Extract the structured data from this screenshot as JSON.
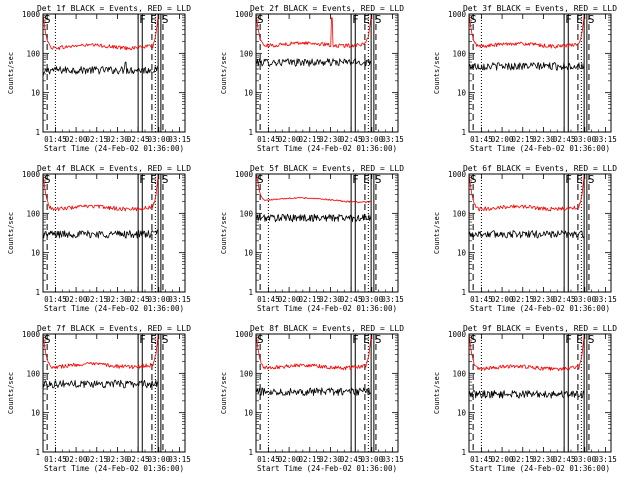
{
  "figure": {
    "xlabel": "Start Time (24-Feb-02 01:36:00)",
    "ylabel": "Counts/sec",
    "ytick_labels": [
      "1",
      "10",
      "100",
      "1000"
    ],
    "xtick_labels": [
      "01:45",
      "02:00",
      "02:15",
      "02:30",
      "02:45",
      "03:00",
      "03:15"
    ],
    "colors": {
      "events": "#000000",
      "lld": "#ff0000",
      "axes": "#000000",
      "background": "#ffffff"
    },
    "markers": {
      "start": "S",
      "flare": "F",
      "end": "E",
      "saa": "S"
    }
  },
  "chart_data": [
    {
      "type": "line",
      "title": "Det 1f BLACK = Events, RED = LLD",
      "x_unit": "minutes after 01:36:00",
      "xlim": [
        0,
        103
      ],
      "ylim": [
        1,
        1000
      ],
      "yscale": "log",
      "series": [
        {
          "name": "Events",
          "color": "#000000",
          "level": 38,
          "edge_rise": [
            25,
            45
          ],
          "spikes": [
            [
              60,
              60
            ]
          ]
        },
        {
          "name": "LLD",
          "color": "#ff0000",
          "level": 150,
          "edge_rise": [
            1000,
            1000
          ],
          "spikes": []
        }
      ],
      "events": {
        "S_start": 0,
        "F_start": 69,
        "F_end": 72,
        "E_end": 83.5,
        "S_saa": 85.5
      },
      "dashed_lines": [
        3,
        79,
        87
      ],
      "dotted_lines": [
        9,
        81.5
      ]
    },
    {
      "type": "line",
      "title": "Det 2f BLACK = Events, RED = LLD",
      "x_unit": "minutes after 01:36:00",
      "xlim": [
        0,
        103
      ],
      "ylim": [
        1,
        1000
      ],
      "yscale": "log",
      "series": [
        {
          "name": "Events",
          "color": "#000000",
          "level": 60,
          "edge_rise": [
            0,
            0
          ],
          "spikes": []
        },
        {
          "name": "LLD",
          "color": "#ff0000",
          "level": 170,
          "edge_rise": [
            1000,
            1000
          ],
          "spikes": [
            [
              55,
              800
            ]
          ]
        }
      ],
      "events": {
        "S_start": 0,
        "F_start": 69,
        "F_end": 72,
        "E_end": 83.5,
        "S_saa": 85.5
      },
      "dashed_lines": [
        3,
        79,
        87
      ],
      "dotted_lines": [
        9,
        81.5
      ]
    },
    {
      "type": "line",
      "title": "Det 3f BLACK = Events, RED = LLD",
      "x_unit": "minutes after 01:36:00",
      "xlim": [
        0,
        103
      ],
      "ylim": [
        1,
        1000
      ],
      "yscale": "log",
      "series": [
        {
          "name": "Events",
          "color": "#000000",
          "level": 48,
          "edge_rise": [
            0,
            0
          ],
          "spikes": []
        },
        {
          "name": "LLD",
          "color": "#ff0000",
          "level": 165,
          "edge_rise": [
            1000,
            1000
          ],
          "spikes": []
        }
      ],
      "events": {
        "S_start": 0,
        "F_start": 69,
        "F_end": 72,
        "E_end": 83.5,
        "S_saa": 85.5
      },
      "dashed_lines": [
        3,
        79,
        87
      ],
      "dotted_lines": [
        9,
        81.5
      ]
    },
    {
      "type": "line",
      "title": "Det 4f BLACK = Events, RED = LLD",
      "x_unit": "minutes after 01:36:00",
      "xlim": [
        0,
        103
      ],
      "ylim": [
        1,
        1000
      ],
      "yscale": "log",
      "series": [
        {
          "name": "Events",
          "color": "#000000",
          "level": 30,
          "edge_rise": [
            0,
            40
          ],
          "spikes": []
        },
        {
          "name": "LLD",
          "color": "#ff0000",
          "level": 140,
          "edge_rise": [
            1000,
            1000
          ],
          "spikes": []
        }
      ],
      "events": {
        "S_start": 0,
        "F_start": 69,
        "F_end": 72,
        "E_end": 83.5,
        "S_saa": 85.5
      },
      "dashed_lines": [
        3,
        79,
        87
      ],
      "dotted_lines": [
        9,
        81.5
      ]
    },
    {
      "type": "line",
      "title": "Det 5f BLACK = Events, RED = LLD",
      "x_unit": "minutes after 01:36:00",
      "xlim": [
        0,
        103
      ],
      "ylim": [
        1,
        1000
      ],
      "yscale": "log",
      "series": [
        {
          "name": "Events",
          "color": "#000000",
          "level": 78,
          "edge_rise": [
            0,
            0
          ],
          "spikes": []
        },
        {
          "name": "LLD",
          "color": "#ff0000",
          "level": 220,
          "edge_rise": [
            1000,
            0
          ],
          "spikes": []
        }
      ],
      "events": {
        "S_start": 0,
        "F_start": 69,
        "F_end": 72,
        "E_end": 83.5,
        "S_saa": 85.5
      },
      "dashed_lines": [
        3,
        79,
        87
      ],
      "dotted_lines": [
        9,
        81.5
      ]
    },
    {
      "type": "line",
      "title": "Det 6f BLACK = Events, RED = LLD",
      "x_unit": "minutes after 01:36:00",
      "xlim": [
        0,
        103
      ],
      "ylim": [
        1,
        1000
      ],
      "yscale": "log",
      "series": [
        {
          "name": "Events",
          "color": "#000000",
          "level": 30,
          "edge_rise": [
            0,
            0
          ],
          "spikes": []
        },
        {
          "name": "LLD",
          "color": "#ff0000",
          "level": 140,
          "edge_rise": [
            1000,
            1000
          ],
          "spikes": []
        }
      ],
      "events": {
        "S_start": 0,
        "F_start": 69,
        "F_end": 72,
        "E_end": 83.5,
        "S_saa": 85.5
      },
      "dashed_lines": [
        3,
        79,
        87
      ],
      "dotted_lines": [
        9,
        81.5
      ]
    },
    {
      "type": "line",
      "title": "Det 7f BLACK = Events, RED = LLD",
      "x_unit": "minutes after 01:36:00",
      "xlim": [
        0,
        103
      ],
      "ylim": [
        1,
        1000
      ],
      "yscale": "log",
      "series": [
        {
          "name": "Events",
          "color": "#000000",
          "level": 55,
          "edge_rise": [
            0,
            0
          ],
          "spikes": []
        },
        {
          "name": "LLD",
          "color": "#ff0000",
          "level": 160,
          "edge_rise": [
            1000,
            1000
          ],
          "spikes": []
        }
      ],
      "events": {
        "S_start": 0,
        "F_start": 69,
        "F_end": 72,
        "E_end": 83.5,
        "S_saa": 85.5
      },
      "dashed_lines": [
        3,
        79,
        87
      ],
      "dotted_lines": [
        9,
        81.5
      ]
    },
    {
      "type": "line",
      "title": "Det 8f BLACK = Events, RED = LLD",
      "x_unit": "minutes after 01:36:00",
      "xlim": [
        0,
        103
      ],
      "ylim": [
        1,
        1000
      ],
      "yscale": "log",
      "series": [
        {
          "name": "Events",
          "color": "#000000",
          "level": 35,
          "edge_rise": [
            0,
            0
          ],
          "spikes": []
        },
        {
          "name": "LLD",
          "color": "#ff0000",
          "level": 150,
          "edge_rise": [
            1000,
            1000
          ],
          "spikes": []
        }
      ],
      "events": {
        "S_start": 0,
        "F_start": 69,
        "F_end": 72,
        "E_end": 83.5,
        "S_saa": 85.5
      },
      "dashed_lines": [
        3,
        79,
        87
      ],
      "dotted_lines": [
        9,
        81.5
      ]
    },
    {
      "type": "line",
      "title": "Det 9f BLACK = Events, RED = LLD",
      "x_unit": "minutes after 01:36:00",
      "xlim": [
        0,
        103
      ],
      "ylim": [
        1,
        1000
      ],
      "yscale": "log",
      "series": [
        {
          "name": "Events",
          "color": "#000000",
          "level": 30,
          "edge_rise": [
            0,
            0
          ],
          "spikes": []
        },
        {
          "name": "LLD",
          "color": "#ff0000",
          "level": 140,
          "edge_rise": [
            1000,
            1000
          ],
          "spikes": []
        }
      ],
      "events": {
        "S_start": 0,
        "F_start": 69,
        "F_end": 72,
        "E_end": 83.5,
        "S_saa": 85.5
      },
      "dashed_lines": [
        3,
        79,
        87
      ],
      "dotted_lines": [
        9,
        81.5
      ]
    }
  ]
}
